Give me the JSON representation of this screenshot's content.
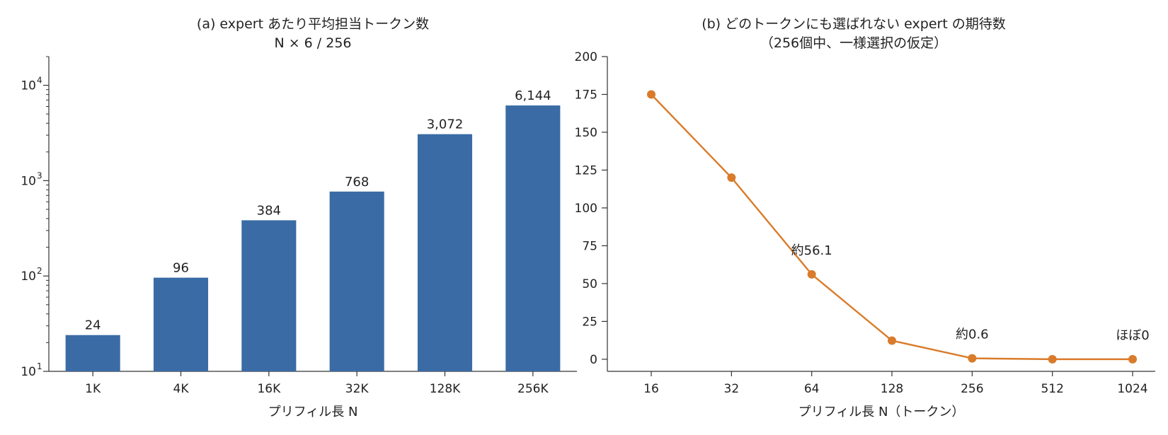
{
  "chart_data": [
    {
      "type": "bar",
      "title": "(a) expert あたり平均担当トークン数",
      "subtitle": "N × 6 / 256",
      "xlabel": "プリフィル長 N",
      "ylabel": "",
      "yscale": "log",
      "ylim": [
        10,
        20000
      ],
      "yticks": [
        {
          "value": 10,
          "base": "10",
          "exp": "1"
        },
        {
          "value": 100,
          "base": "10",
          "exp": "2"
        },
        {
          "value": 1000,
          "base": "10",
          "exp": "3"
        },
        {
          "value": 10000,
          "base": "10",
          "exp": "4"
        }
      ],
      "categories": [
        "1K",
        "4K",
        "16K",
        "32K",
        "128K",
        "256K"
      ],
      "values": [
        24,
        96,
        384,
        768,
        3072,
        6144
      ],
      "value_labels": [
        "24",
        "96",
        "384",
        "768",
        "3,072",
        "6,144"
      ],
      "color": "#3a6ba5",
      "grid": false
    },
    {
      "type": "line",
      "title": "(b) どのトークンにも選ばれない expert の期待数",
      "subtitle": "（256個中、一様選択の仮定）",
      "xlabel": "プリフィル長 N（トークン）",
      "ylabel": "",
      "x": [
        "16",
        "32",
        "64",
        "128",
        "256",
        "512",
        "1024"
      ],
      "y": [
        175,
        120,
        56.1,
        12.3,
        0.6,
        0,
        0
      ],
      "ylim": [
        -8,
        200
      ],
      "yticks": [
        "0",
        "25",
        "50",
        "75",
        "100",
        "125",
        "150",
        "175",
        "200"
      ],
      "annotations": [
        {
          "x_index": 2,
          "y": 56.1,
          "text": "約56.1"
        },
        {
          "x_index": 4,
          "y": 0.6,
          "text": "約0.6"
        },
        {
          "x_index": 6,
          "y": 0,
          "text": "ほぼ0"
        }
      ],
      "color": "#d97b2a",
      "grid": false
    }
  ]
}
